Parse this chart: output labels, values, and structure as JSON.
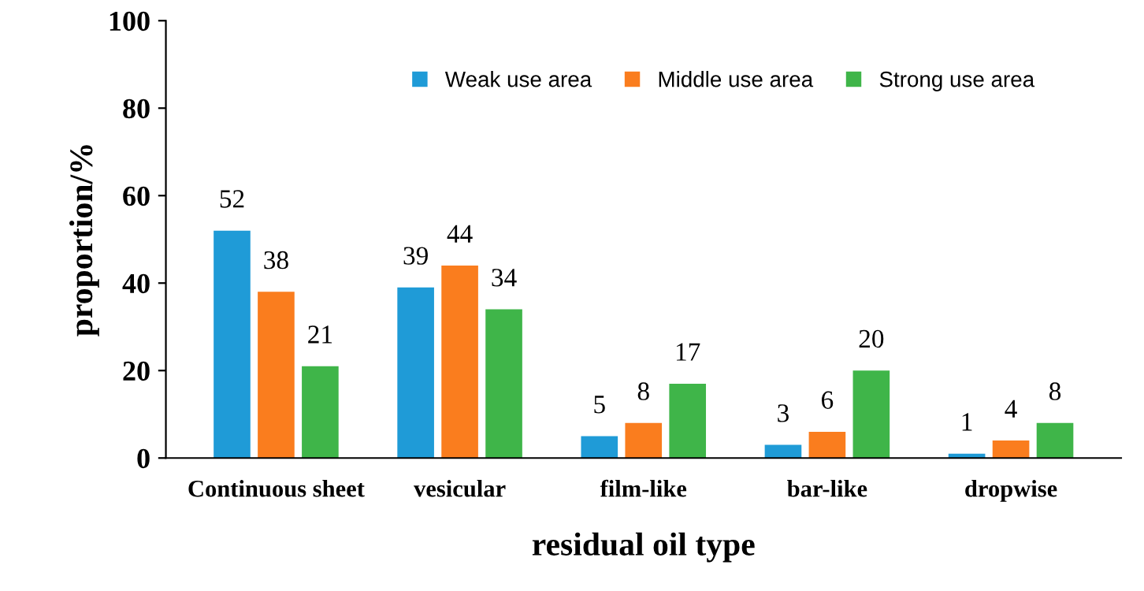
{
  "chart_data": {
    "type": "bar",
    "xlabel": "residual oil type",
    "ylabel": "proportion/%",
    "categories": [
      "Continuous sheet",
      "vesicular",
      "film-like",
      "bar-like",
      "dropwise"
    ],
    "series": [
      {
        "name": "Weak use area",
        "color": "#1f9bd7",
        "values": [
          52,
          39,
          5,
          3,
          1
        ]
      },
      {
        "name": "Middle use area",
        "color": "#fa7d1e",
        "values": [
          38,
          44,
          8,
          6,
          4
        ]
      },
      {
        "name": "Strong use area",
        "color": "#3fb549",
        "values": [
          21,
          34,
          17,
          20,
          8
        ]
      }
    ],
    "ylim": [
      0,
      100
    ],
    "yticks": [
      0,
      20,
      40,
      60,
      80,
      100
    ],
    "grid": false,
    "legend": "top right",
    "data_labels": true
  }
}
